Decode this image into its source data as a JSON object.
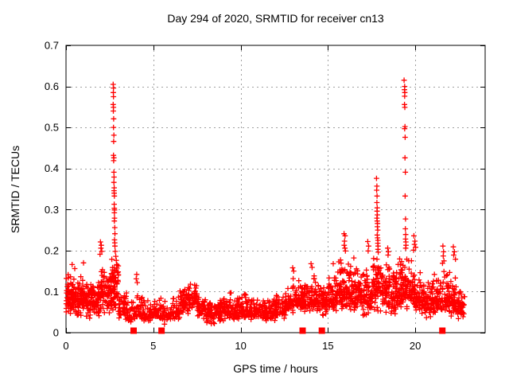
{
  "chart_data": {
    "type": "scatter",
    "title": "Day 294 of 2020, SRMTID for receiver cn13",
    "xlabel": "GPS time / hours",
    "ylabel": "SRMTID / TECUs",
    "xlim": [
      0,
      24
    ],
    "ylim": [
      0,
      0.7
    ],
    "x_ticks": [
      0,
      5,
      10,
      15,
      20
    ],
    "x_tick_labels": [
      "0",
      "5",
      "10",
      "15",
      "20"
    ],
    "y_ticks": [
      0,
      0.1,
      0.2,
      0.3,
      0.4,
      0.5,
      0.6,
      0.7
    ],
    "y_tick_labels": [
      "0",
      "0.1",
      "0.2",
      "0.3",
      "0.4",
      "0.5",
      "0.6",
      "0.7"
    ],
    "grid": true,
    "legend": "none",
    "marker": "plus",
    "colors": {
      "points": "#ff0000",
      "grid": "#a0a0a0",
      "frame": "#000000"
    },
    "band_profile": {
      "description": "dense noise band of SRMTID values; columns: x_start, x_end, y_min, y_typical, y_max, n_points",
      "columns": [
        "x_start",
        "x_end",
        "y_min",
        "y_typical",
        "y_max",
        "n_points"
      ],
      "segments": [
        [
          0.0,
          0.5,
          0.04,
          0.085,
          0.15,
          70
        ],
        [
          0.5,
          1.0,
          0.035,
          0.08,
          0.145,
          70
        ],
        [
          1.0,
          1.5,
          0.03,
          0.075,
          0.13,
          62
        ],
        [
          1.5,
          2.0,
          0.03,
          0.08,
          0.14,
          62
        ],
        [
          2.0,
          2.5,
          0.04,
          0.09,
          0.16,
          62
        ],
        [
          2.5,
          3.0,
          0.05,
          0.105,
          0.19,
          70
        ],
        [
          3.0,
          3.5,
          0.025,
          0.06,
          0.105,
          42
        ],
        [
          3.5,
          4.0,
          0.02,
          0.042,
          0.08,
          30
        ],
        [
          4.0,
          4.5,
          0.025,
          0.05,
          0.105,
          38
        ],
        [
          4.5,
          5.0,
          0.025,
          0.045,
          0.08,
          33
        ],
        [
          5.0,
          5.5,
          0.03,
          0.05,
          0.085,
          33
        ],
        [
          5.5,
          6.0,
          0.02,
          0.045,
          0.08,
          33
        ],
        [
          6.0,
          6.5,
          0.03,
          0.05,
          0.09,
          38
        ],
        [
          6.5,
          7.0,
          0.04,
          0.07,
          0.115,
          48
        ],
        [
          7.0,
          7.5,
          0.05,
          0.085,
          0.13,
          52
        ],
        [
          7.5,
          8.0,
          0.03,
          0.06,
          0.1,
          44
        ],
        [
          8.0,
          8.5,
          0.02,
          0.045,
          0.08,
          44
        ],
        [
          8.5,
          9.0,
          0.025,
          0.05,
          0.085,
          44
        ],
        [
          9.0,
          9.5,
          0.025,
          0.055,
          0.105,
          44
        ],
        [
          9.5,
          10.0,
          0.025,
          0.05,
          0.09,
          44
        ],
        [
          10.0,
          10.5,
          0.03,
          0.055,
          0.1,
          44
        ],
        [
          10.5,
          11.0,
          0.03,
          0.05,
          0.09,
          44
        ],
        [
          11.0,
          11.5,
          0.025,
          0.05,
          0.085,
          44
        ],
        [
          11.5,
          12.0,
          0.025,
          0.05,
          0.09,
          44
        ],
        [
          12.0,
          12.5,
          0.03,
          0.055,
          0.095,
          44
        ],
        [
          12.5,
          13.0,
          0.04,
          0.07,
          0.12,
          48
        ],
        [
          13.0,
          13.5,
          0.05,
          0.08,
          0.135,
          48
        ],
        [
          13.5,
          14.0,
          0.04,
          0.07,
          0.12,
          48
        ],
        [
          14.0,
          14.5,
          0.05,
          0.08,
          0.145,
          52
        ],
        [
          14.5,
          15.0,
          0.04,
          0.075,
          0.13,
          52
        ],
        [
          15.0,
          15.5,
          0.05,
          0.085,
          0.155,
          56
        ],
        [
          15.5,
          16.0,
          0.05,
          0.1,
          0.19,
          58
        ],
        [
          16.0,
          16.5,
          0.05,
          0.095,
          0.175,
          58
        ],
        [
          16.5,
          17.0,
          0.05,
          0.09,
          0.16,
          58
        ],
        [
          17.0,
          17.5,
          0.04,
          0.09,
          0.17,
          58
        ],
        [
          17.5,
          18.0,
          0.05,
          0.11,
          0.19,
          62
        ],
        [
          18.0,
          18.5,
          0.04,
          0.1,
          0.18,
          58
        ],
        [
          18.5,
          19.0,
          0.04,
          0.09,
          0.17,
          58
        ],
        [
          19.0,
          19.5,
          0.05,
          0.1,
          0.19,
          62
        ],
        [
          19.5,
          20.0,
          0.05,
          0.1,
          0.185,
          58
        ],
        [
          20.0,
          20.5,
          0.04,
          0.08,
          0.155,
          52
        ],
        [
          20.5,
          21.0,
          0.03,
          0.07,
          0.135,
          52
        ],
        [
          21.0,
          21.5,
          0.04,
          0.08,
          0.145,
          52
        ],
        [
          21.5,
          22.0,
          0.04,
          0.085,
          0.155,
          52
        ],
        [
          22.0,
          22.45,
          0.03,
          0.075,
          0.135,
          44
        ],
        [
          22.45,
          22.85,
          0.03,
          0.07,
          0.12,
          38
        ]
      ]
    },
    "outliers": [
      [
        2.7,
        0.605
      ],
      [
        2.72,
        0.596
      ],
      [
        2.71,
        0.585
      ],
      [
        2.72,
        0.575
      ],
      [
        2.7,
        0.556
      ],
      [
        2.72,
        0.549
      ],
      [
        2.71,
        0.54
      ],
      [
        2.73,
        0.521
      ],
      [
        2.72,
        0.5
      ],
      [
        2.74,
        0.481
      ],
      [
        2.73,
        0.466
      ],
      [
        2.72,
        0.432
      ],
      [
        2.74,
        0.426
      ],
      [
        2.73,
        0.419
      ],
      [
        2.74,
        0.391
      ],
      [
        2.75,
        0.379
      ],
      [
        2.74,
        0.366
      ],
      [
        2.76,
        0.353
      ],
      [
        2.75,
        0.346
      ],
      [
        2.76,
        0.34
      ],
      [
        2.77,
        0.333
      ],
      [
        2.76,
        0.313
      ],
      [
        2.77,
        0.303
      ],
      [
        2.78,
        0.299
      ],
      [
        2.77,
        0.292
      ],
      [
        2.78,
        0.279
      ],
      [
        2.77,
        0.272
      ],
      [
        2.79,
        0.256
      ],
      [
        2.8,
        0.241
      ],
      [
        2.78,
        0.226
      ],
      [
        2.79,
        0.219
      ],
      [
        2.8,
        0.211
      ],
      [
        2.82,
        0.198
      ],
      [
        2.85,
        0.186
      ],
      [
        2.88,
        0.176
      ],
      [
        2.9,
        0.166
      ],
      [
        2.92,
        0.157
      ],
      [
        2.86,
        0.151
      ],
      [
        2.95,
        0.146
      ],
      [
        3.0,
        0.141
      ],
      [
        1.97,
        0.221
      ],
      [
        2.02,
        0.213
      ],
      [
        2.0,
        0.206
      ],
      [
        2.05,
        0.198
      ],
      [
        1.95,
        0.191
      ],
      [
        0.35,
        0.166
      ],
      [
        1.0,
        0.17
      ],
      [
        0.5,
        0.156
      ],
      [
        4.05,
        0.142
      ],
      [
        4.02,
        0.131
      ],
      [
        4.08,
        0.122
      ],
      [
        12.98,
        0.158
      ],
      [
        13.04,
        0.15
      ],
      [
        14.03,
        0.168
      ],
      [
        14.09,
        0.159
      ],
      [
        15.3,
        0.168
      ],
      [
        15.92,
        0.241
      ],
      [
        15.98,
        0.236
      ],
      [
        15.95,
        0.223
      ],
      [
        15.93,
        0.213
      ],
      [
        15.97,
        0.206
      ],
      [
        16.0,
        0.199
      ],
      [
        16.48,
        0.182
      ],
      [
        17.28,
        0.222
      ],
      [
        17.33,
        0.211
      ],
      [
        17.3,
        0.199
      ],
      [
        17.78,
        0.376
      ],
      [
        17.8,
        0.357
      ],
      [
        17.79,
        0.347
      ],
      [
        17.81,
        0.333
      ],
      [
        17.8,
        0.317
      ],
      [
        17.82,
        0.304
      ],
      [
        17.81,
        0.296
      ],
      [
        17.83,
        0.287
      ],
      [
        17.8,
        0.279
      ],
      [
        17.82,
        0.272
      ],
      [
        17.84,
        0.266
      ],
      [
        17.83,
        0.258
      ],
      [
        17.85,
        0.25
      ],
      [
        17.82,
        0.238
      ],
      [
        17.84,
        0.231
      ],
      [
        17.86,
        0.225
      ],
      [
        17.85,
        0.218
      ],
      [
        17.87,
        0.211
      ],
      [
        17.86,
        0.203
      ],
      [
        17.88,
        0.196
      ],
      [
        18.42,
        0.206
      ],
      [
        18.46,
        0.197
      ],
      [
        18.44,
        0.189
      ],
      [
        19.36,
        0.615
      ],
      [
        19.39,
        0.6
      ],
      [
        19.38,
        0.592
      ],
      [
        19.4,
        0.585
      ],
      [
        19.39,
        0.576
      ],
      [
        19.38,
        0.556
      ],
      [
        19.4,
        0.549
      ],
      [
        19.41,
        0.502
      ],
      [
        19.39,
        0.497
      ],
      [
        19.42,
        0.476
      ],
      [
        19.41,
        0.426
      ],
      [
        19.43,
        0.391
      ],
      [
        19.42,
        0.333
      ],
      [
        19.44,
        0.277
      ],
      [
        19.43,
        0.253
      ],
      [
        19.45,
        0.239
      ],
      [
        19.44,
        0.228
      ],
      [
        19.46,
        0.221
      ],
      [
        19.47,
        0.213
      ],
      [
        19.45,
        0.206
      ],
      [
        19.92,
        0.236
      ],
      [
        19.98,
        0.223
      ],
      [
        19.95,
        0.215
      ],
      [
        20.02,
        0.208
      ],
      [
        19.9,
        0.201
      ],
      [
        21.58,
        0.211
      ],
      [
        21.62,
        0.197
      ],
      [
        21.6,
        0.187
      ],
      [
        21.64,
        0.175
      ],
      [
        21.56,
        0.169
      ],
      [
        22.18,
        0.209
      ],
      [
        22.24,
        0.197
      ],
      [
        22.2,
        0.189
      ],
      [
        22.3,
        0.179
      ]
    ],
    "gap_markers": {
      "marker": "filled-square",
      "y": 0,
      "x": [
        3.87,
        5.47,
        13.55,
        14.65,
        21.55
      ]
    }
  }
}
